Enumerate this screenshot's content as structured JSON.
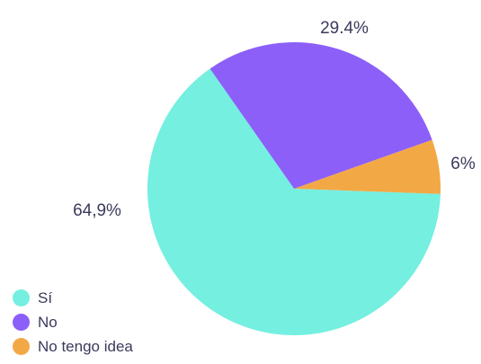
{
  "chart_data": {
    "type": "pie",
    "slices": [
      {
        "name": "Sí",
        "value": 64.9,
        "label": "64,9%",
        "color": "#74efe0"
      },
      {
        "name": "No",
        "value": 29.4,
        "label": "29.4%",
        "color": "#8c5ff9"
      },
      {
        "name": "No tengo idea",
        "value": 6,
        "label": "6%",
        "color": "#f3a846"
      }
    ],
    "legend_placement": "bottom-left"
  },
  "legend": {
    "items": [
      {
        "label": "Sí",
        "color": "#74efe0"
      },
      {
        "label": "No",
        "color": "#8c5ff9"
      },
      {
        "label": "No tengo idea",
        "color": "#f3a846"
      }
    ]
  }
}
